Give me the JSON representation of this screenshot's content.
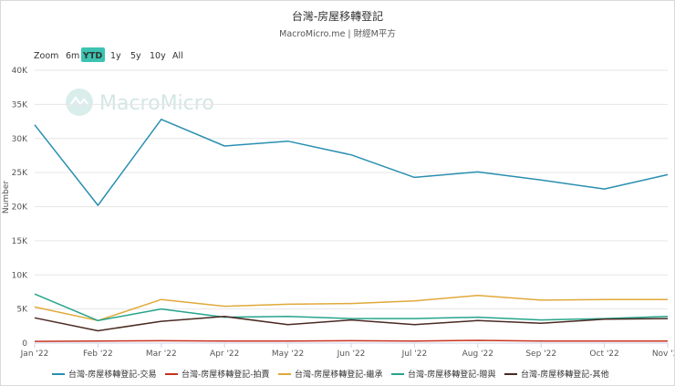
{
  "chart_data": {
    "type": "line",
    "title": "台灣-房屋移轉登記",
    "subtitle": "MacroMicro.me | 財經M平方",
    "watermark": "MacroMicro",
    "ylabel": "Number",
    "ylim": [
      0,
      40000
    ],
    "yticks": [
      0,
      5000,
      10000,
      15000,
      20000,
      25000,
      30000,
      35000,
      40000
    ],
    "ytick_labels": [
      "0",
      "5K",
      "10K",
      "15K",
      "20K",
      "25K",
      "30K",
      "35K",
      "40K"
    ],
    "categories": [
      "Jan '22",
      "Feb '22",
      "Mar '22",
      "Apr '22",
      "May '22",
      "Jun '22",
      "Jul '22",
      "Aug '22",
      "Sep '22",
      "Oct '22",
      "Nov '22"
    ],
    "zoom": {
      "label": "Zoom",
      "buttons": [
        "6m",
        "YTD",
        "1y",
        "5y",
        "10y",
        "All"
      ],
      "selected": "YTD"
    },
    "series": [
      {
        "name": "台灣-房屋移轉登記-交易",
        "color": "#2a8fb0",
        "values": [
          32000,
          20200,
          32800,
          28900,
          29600,
          27600,
          24300,
          25100,
          23900,
          22600,
          24700
        ]
      },
      {
        "name": "台灣-房屋移轉登記-拍賣",
        "color": "#c8321e",
        "values": [
          250,
          300,
          350,
          300,
          300,
          350,
          300,
          400,
          300,
          300,
          300
        ]
      },
      {
        "name": "台灣-房屋移轉登記-繼承",
        "color": "#e0a93a",
        "values": [
          5300,
          3300,
          6400,
          5400,
          5700,
          5800,
          6200,
          7000,
          6300,
          6400,
          6400
        ]
      },
      {
        "name": "台灣-房屋移轉登記-贈與",
        "color": "#26a48c",
        "values": [
          7200,
          3300,
          5000,
          3800,
          3900,
          3600,
          3600,
          3800,
          3400,
          3600,
          3900
        ]
      },
      {
        "name": "台灣-房屋移轉登記-其他",
        "color": "#4a2a22",
        "values": [
          3700,
          1800,
          3200,
          3900,
          2700,
          3400,
          2700,
          3300,
          2900,
          3500,
          3600
        ]
      }
    ]
  }
}
